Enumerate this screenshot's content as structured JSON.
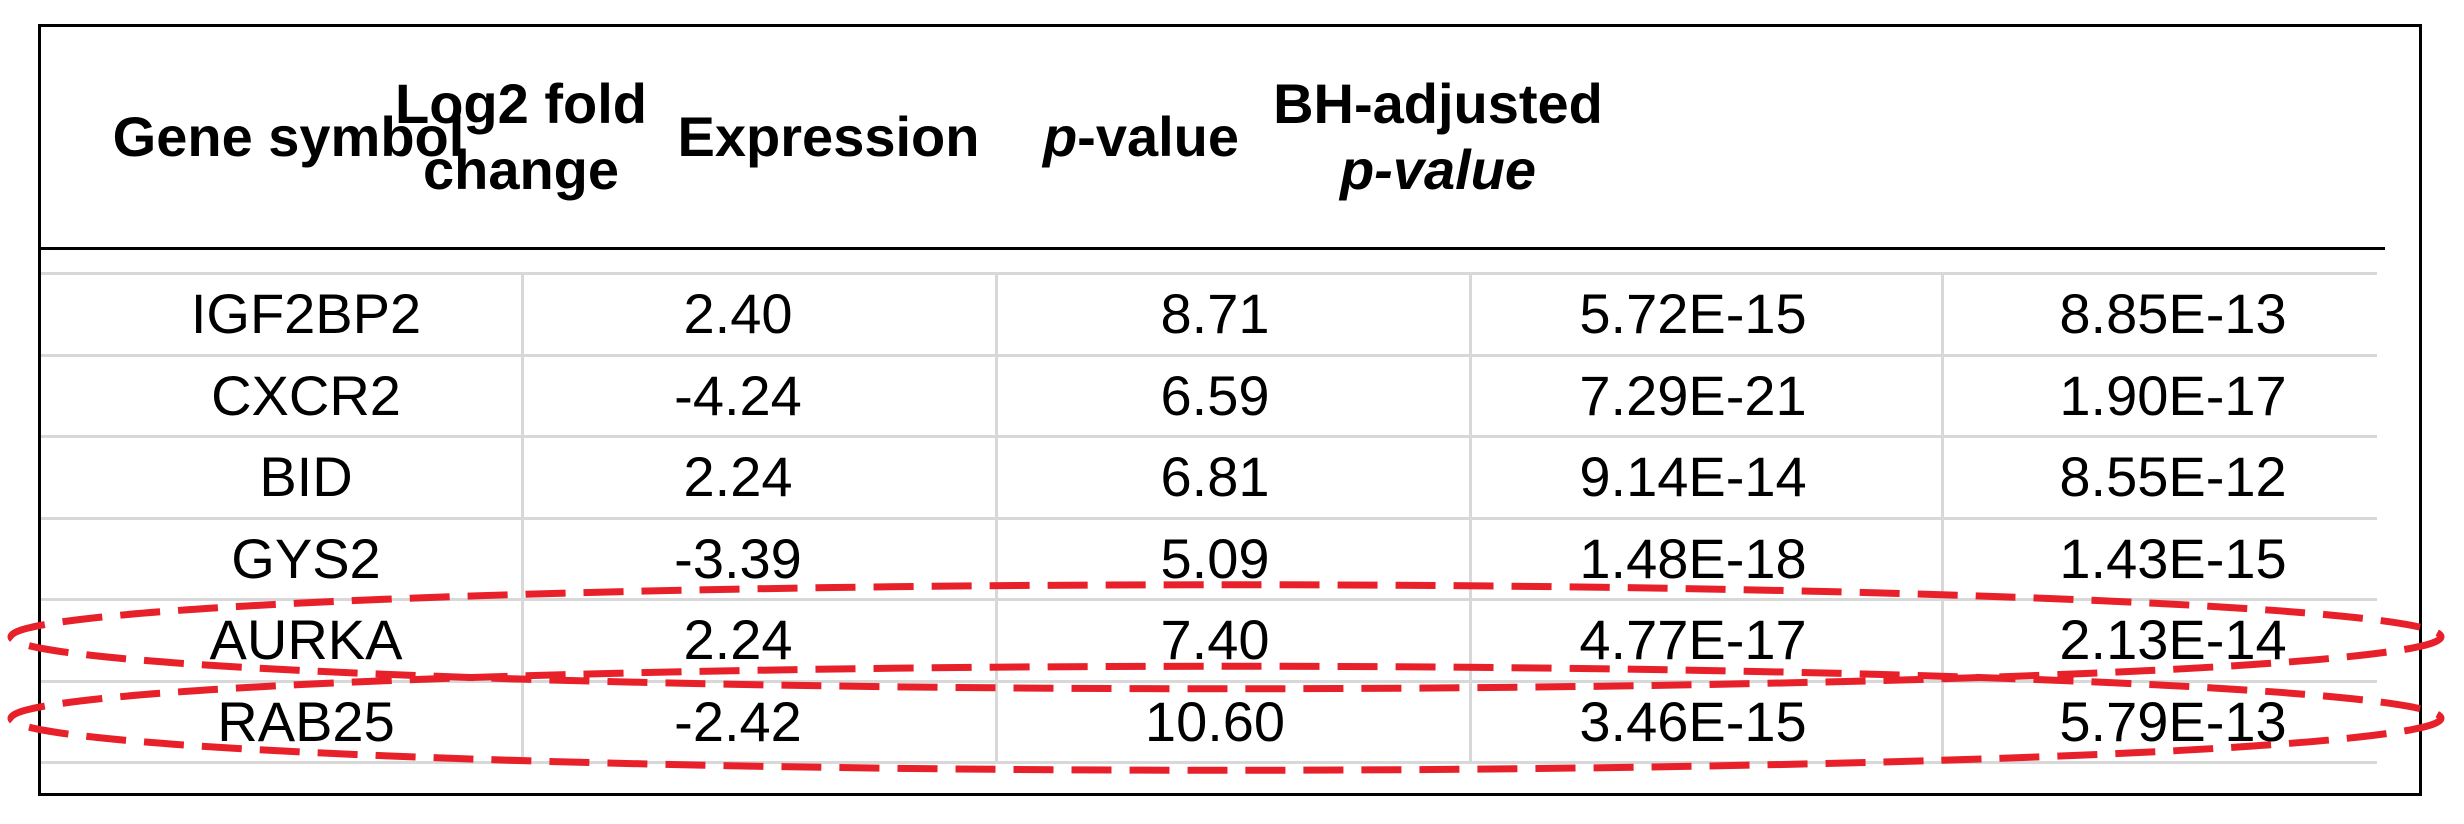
{
  "table": {
    "headers": [
      {
        "line1": "Gene symbol",
        "line2": ""
      },
      {
        "line1": "Log2 fold",
        "line2": "change"
      },
      {
        "line1": "Expression",
        "line2": ""
      },
      {
        "line1_italic": "p",
        "line1": "-value",
        "line2": ""
      },
      {
        "line1": "BH-adjusted",
        "line2_italic": "p-value"
      }
    ],
    "rows": [
      [
        "IGF2BP2",
        "2.40",
        "8.71",
        "5.72E-15",
        "8.85E-13"
      ],
      [
        "CXCR2",
        "-4.24",
        "6.59",
        "7.29E-21",
        "1.90E-17"
      ],
      [
        "BID",
        "2.24",
        "6.81",
        "9.14E-14",
        "8.55E-12"
      ],
      [
        "GYS2",
        "-3.39",
        "5.09",
        "1.48E-18",
        "1.43E-15"
      ],
      [
        "AURKA",
        "2.24",
        "7.40",
        "4.77E-17",
        "2.13E-14"
      ],
      [
        "RAB25",
        "-2.42",
        "10.60",
        "3.46E-15",
        "5.79E-13"
      ]
    ],
    "highlighted_rows": [
      "AURKA",
      "RAB25"
    ],
    "colors": {
      "highlight": "#e8202a",
      "gridline": "#d8d8d8",
      "border": "#000000"
    }
  }
}
